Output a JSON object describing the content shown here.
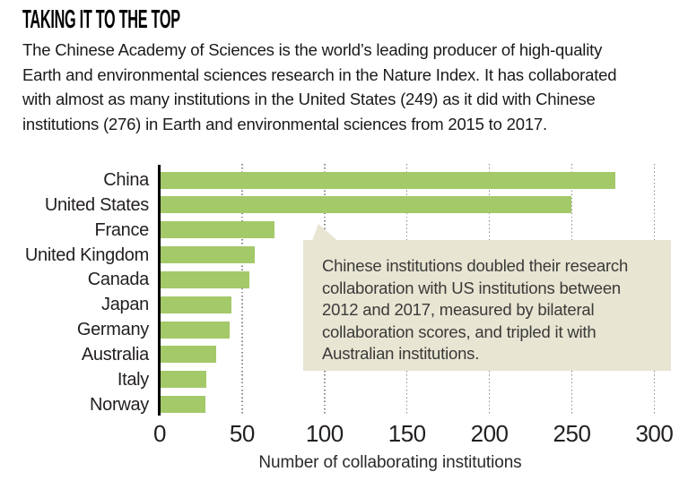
{
  "title": "TAKING IT TO THE TOP",
  "intro_lines": [
    "The Chinese Academy of Sciences is the world’s leading producer of high-quality",
    "Earth and environmental sciences research in the Nature Index. It has collaborated",
    "with almost as many institutions in the United States (249) as it did with Chinese",
    "institutions (276) in Earth and environmental sciences from 2015 to 2017."
  ],
  "chart_data": {
    "type": "bar",
    "orientation": "horizontal",
    "categories": [
      "China",
      "United States",
      "France",
      "United Kingdom",
      "Canada",
      "Japan",
      "Germany",
      "Australia",
      "Italy",
      "Norway"
    ],
    "values": [
      276,
      249,
      69,
      57,
      54,
      43,
      42,
      34,
      28,
      27
    ],
    "xlabel": "Number of collaborating institutions",
    "xticks": [
      0,
      50,
      100,
      150,
      200,
      250,
      300
    ],
    "xlim": [
      0,
      300
    ],
    "grid": "vertical-dotted",
    "legend": "none"
  },
  "annotation": {
    "lines": [
      "Chinese institutions doubled their research",
      "collaboration with US institutions between",
      "2012 and 2017, measured by bilateral",
      "collaboration scores, and tripled it with",
      "Australian institutions."
    ]
  },
  "colors": {
    "bar": "#a3c969",
    "callout_bg": "#e8e5d3",
    "axis_line": "#000000",
    "gridline": "#8a8a8a",
    "text": "#231f20"
  }
}
